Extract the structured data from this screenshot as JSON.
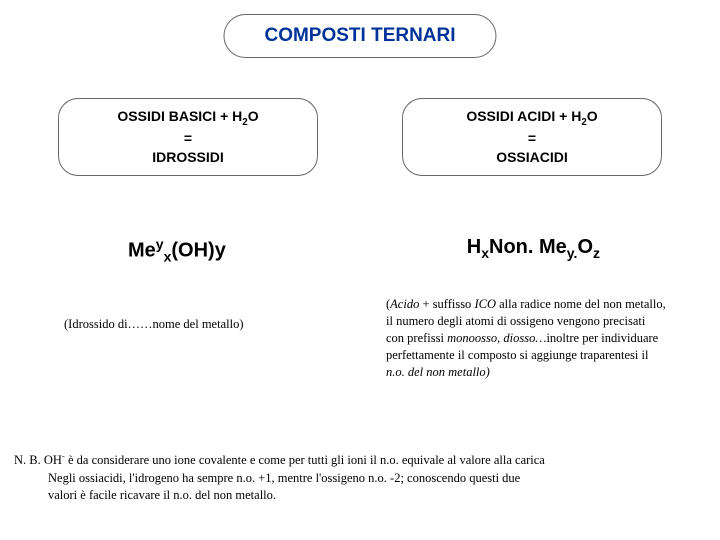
{
  "background_color": "#ffffff",
  "title": {
    "text": "COMPOSTI TERNARI",
    "color": "#003399",
    "fontsize": 19,
    "border_color": "#666666",
    "border_radius": 22
  },
  "left": {
    "box": {
      "line1": "OSSIDI BASICI + H",
      "sub1": "2",
      "line1_tail": "O",
      "line2": "=",
      "line3": "IDROSSIDI",
      "border_color": "#666666"
    },
    "formula": {
      "pre": "Me",
      "sup1": "y",
      "sub1": "x",
      "mid": "(OH)y"
    },
    "desc": "(Idrossido di……nome del metallo)"
  },
  "right": {
    "box": {
      "line1": "OSSIDI ACIDI + H",
      "sub1": "2",
      "line1_tail": "O",
      "line2": "=",
      "line3": "OSSIACIDI",
      "border_color": "#666666"
    },
    "formula": {
      "p1": "H",
      "s1": "x",
      "p2": "Non. Me",
      "s2": "y.",
      "p3": "O",
      "s3": "z"
    },
    "desc_parts": {
      "a": "(",
      "b": "Acido",
      "c": " + suffisso ",
      "d": "ICO",
      "e": "  alla radice nome del non metallo, il numero degli atomi di ossigeno vengono precisati con prefissi ",
      "f": "monoosso, diosso…",
      "g": "inoltre per individuare perfettamente il composto si aggiunge traparentesi il ",
      "h": "n.o. del non metallo)"
    }
  },
  "footnote": {
    "lead": "N. B. OH",
    "sup": "-",
    "rest1": " è da considerare uno ione covalente e come per tutti gli ioni il n.o. equivale al valore alla carica",
    "line2": "Negli ossiacidi, l'idrogeno ha sempre n.o. +1, mentre l'ossigeno n.o. -2; conoscendo questi due",
    "line3": "valori è facile ricavare il n.o. del non metallo."
  }
}
